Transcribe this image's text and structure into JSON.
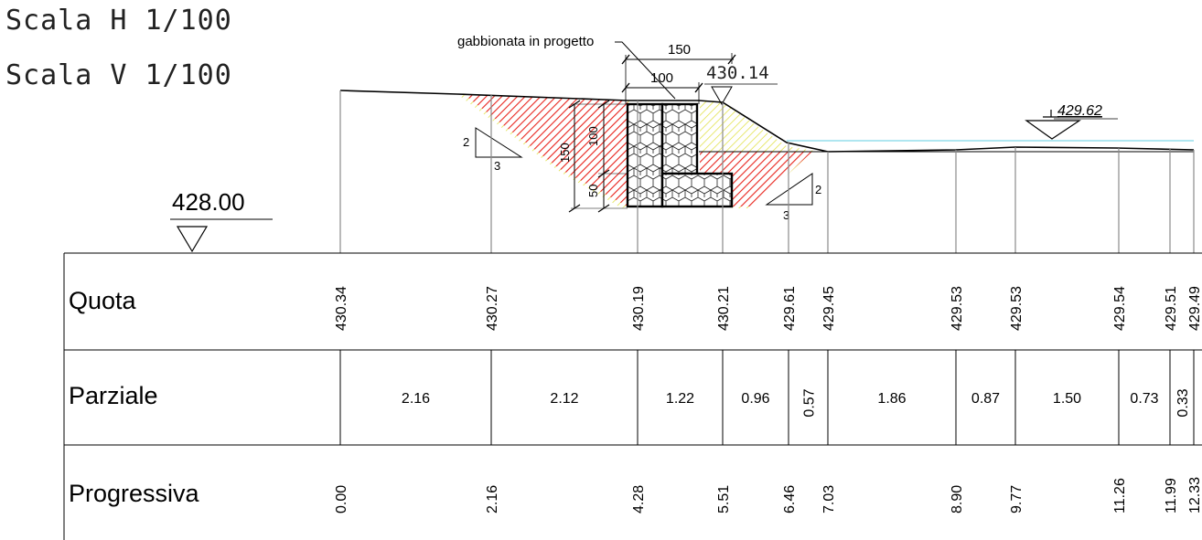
{
  "scales": {
    "horizontal": "Scala H 1/100",
    "vertical": "Scala V 1/100"
  },
  "datum": {
    "value": "428.00"
  },
  "gabion_label": "gabbionata in progetto",
  "dimensions": {
    "width_top_total": "150",
    "width_top_upper": "100",
    "level_top": "430.14",
    "height_total": "150",
    "height_upper": "100",
    "height_lower": "50"
  },
  "water_level": "429.62",
  "slopes": [
    {
      "rise": "2",
      "run": "3"
    },
    {
      "rise": "2",
      "run": "3"
    }
  ],
  "table": {
    "row_labels": {
      "quota": "Quota",
      "parziale": "Parziale",
      "progressiva": "Progressiva"
    },
    "stations": [
      {
        "quota": "430.34",
        "progressiva": "0.00"
      },
      {
        "quota": "430.27",
        "progressiva": "2.16"
      },
      {
        "quota": "430.19",
        "progressiva": "4.28"
      },
      {
        "quota": "430.21",
        "progressiva": "5.51"
      },
      {
        "quota": "429.61",
        "progressiva": "6.46"
      },
      {
        "quota": "429.45",
        "progressiva": "7.03"
      },
      {
        "quota": "429.53",
        "progressiva": "8.90"
      },
      {
        "quota": "429.53",
        "progressiva": "9.77"
      },
      {
        "quota": "429.54",
        "progressiva": "11.26"
      },
      {
        "quota": "429.51",
        "progressiva": "11.99"
      },
      {
        "quota": "429.49",
        "progressiva": "12.33"
      }
    ],
    "partials": [
      "2.16",
      "2.12",
      "1.22",
      "0.96",
      "0.57",
      "1.86",
      "0.87",
      "1.50",
      "0.73",
      "0.33"
    ]
  },
  "colors": {
    "fill_hatch": "#e8231c",
    "cut_hatch": "#e6e62a",
    "water_line": "#7fd8e6",
    "station_line": "#8a8a8a",
    "gabion_outline": "#000000"
  }
}
